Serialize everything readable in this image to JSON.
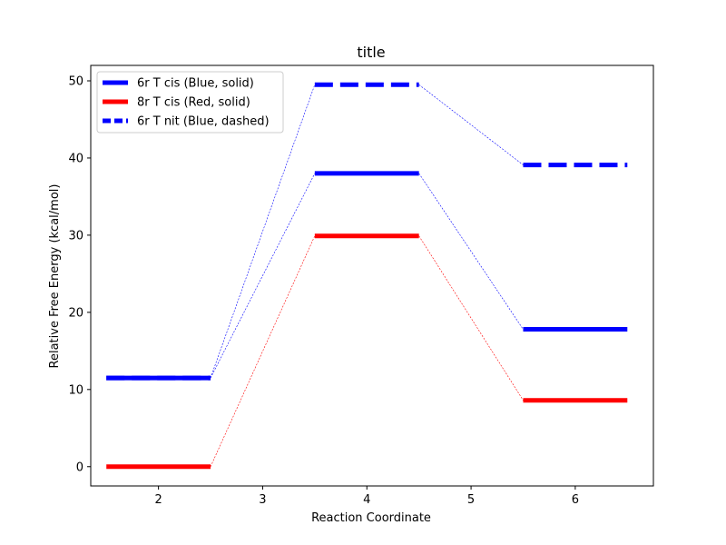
{
  "chart_data": {
    "type": "line",
    "title": "title",
    "xlabel": "Reaction Coordinate",
    "ylabel": "Relative Free Energy (kcal/mol)",
    "xlim": [
      1.35,
      6.75
    ],
    "ylim": [
      -2.5,
      52
    ],
    "xticks": [
      2,
      3,
      4,
      5,
      6
    ],
    "yticks": [
      0,
      10,
      20,
      30,
      40,
      50
    ],
    "grid": false,
    "legend_position": "top-left",
    "series": [
      {
        "name": "6r T cis (Blue, solid)",
        "color": "#0000ff",
        "style": "solid",
        "levels": [
          {
            "x": [
              1.5,
              2.5
            ],
            "y": 11.5
          },
          {
            "x": [
              3.5,
              4.5
            ],
            "y": 38.0
          },
          {
            "x": [
              5.5,
              6.5
            ],
            "y": 17.8
          }
        ]
      },
      {
        "name": "8r T cis (Red, solid)",
        "color": "#ff0000",
        "style": "solid",
        "levels": [
          {
            "x": [
              1.5,
              2.5
            ],
            "y": 0.0
          },
          {
            "x": [
              3.5,
              4.5
            ],
            "y": 29.9
          },
          {
            "x": [
              5.5,
              6.5
            ],
            "y": 8.6
          }
        ]
      },
      {
        "name": "6r T nit (Blue, dashed)",
        "color": "#0000ff",
        "style": "dashed",
        "levels": [
          {
            "x": [
              1.5,
              2.5
            ],
            "y": 11.5
          },
          {
            "x": [
              3.5,
              4.5
            ],
            "y": 49.5
          },
          {
            "x": [
              5.5,
              6.5
            ],
            "y": 39.1
          }
        ]
      }
    ]
  }
}
